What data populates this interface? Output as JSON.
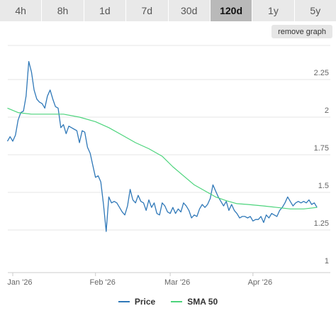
{
  "tabs": [
    {
      "label": "4h",
      "active": false
    },
    {
      "label": "8h",
      "active": false
    },
    {
      "label": "1d",
      "active": false
    },
    {
      "label": "7d",
      "active": false
    },
    {
      "label": "30d",
      "active": false
    },
    {
      "label": "120d",
      "active": true
    },
    {
      "label": "1y",
      "active": false
    },
    {
      "label": "5y",
      "active": false
    }
  ],
  "remove_graph_label": "remove graph",
  "colors": {
    "price": "#2f78b8",
    "sma": "#4cd47c",
    "grid": "#e6e6e6",
    "axis": "#cccccc",
    "tab_active": "#b9b9b9",
    "tab": "#e9e9e9"
  },
  "legend": [
    {
      "label": "Price",
      "color": "#2f78b8"
    },
    {
      "label": "SMA 50",
      "color": "#4cd47c"
    }
  ],
  "chart_data": {
    "type": "line",
    "title": "",
    "xlabel": "",
    "ylabel": "",
    "ylim": [
      1,
      2.5
    ],
    "xlim": [
      "2026-01-01",
      "2026-04-30"
    ],
    "y_ticks": [
      1,
      1.25,
      1.5,
      1.75,
      2,
      2.25
    ],
    "y_tick_labels": [
      "1",
      "1.25",
      "1.5",
      "1.75",
      "2",
      "2.25"
    ],
    "x_ticks": [
      {
        "date": "2026-01-01",
        "label": "Jan '26"
      },
      {
        "date": "2026-02-01",
        "label": "Feb '26"
      },
      {
        "date": "2026-03-01",
        "label": "Mar '26"
      },
      {
        "date": "2026-04-01",
        "label": "Apr '26"
      }
    ],
    "grid": "horizontal",
    "legend_position": "bottom-center",
    "series": [
      {
        "name": "Price",
        "color": "#2f78b8",
        "points": [
          [
            "2025-12-30",
            1.84
          ],
          [
            "2025-12-31",
            1.87
          ],
          [
            "2026-01-01",
            1.84
          ],
          [
            "2026-01-02",
            1.88
          ],
          [
            "2026-01-03",
            1.98
          ],
          [
            "2026-01-04",
            2.03
          ],
          [
            "2026-01-05",
            2.04
          ],
          [
            "2026-01-06",
            2.14
          ],
          [
            "2026-01-07",
            2.37
          ],
          [
            "2026-01-08",
            2.3
          ],
          [
            "2026-01-09",
            2.18
          ],
          [
            "2026-01-10",
            2.12
          ],
          [
            "2026-01-11",
            2.1
          ],
          [
            "2026-01-12",
            2.09
          ],
          [
            "2026-01-13",
            2.06
          ],
          [
            "2026-01-14",
            2.14
          ],
          [
            "2026-01-15",
            2.18
          ],
          [
            "2026-01-16",
            2.12
          ],
          [
            "2026-01-17",
            2.07
          ],
          [
            "2026-01-18",
            2.06
          ],
          [
            "2026-01-19",
            1.93
          ],
          [
            "2026-01-20",
            1.95
          ],
          [
            "2026-01-21",
            1.89
          ],
          [
            "2026-01-22",
            1.94
          ],
          [
            "2026-01-23",
            1.93
          ],
          [
            "2026-01-24",
            1.92
          ],
          [
            "2026-01-25",
            1.91
          ],
          [
            "2026-01-26",
            1.83
          ],
          [
            "2026-01-27",
            1.91
          ],
          [
            "2026-01-28",
            1.9
          ],
          [
            "2026-01-29",
            1.8
          ],
          [
            "2026-01-30",
            1.76
          ],
          [
            "2026-01-31",
            1.68
          ],
          [
            "2026-02-01",
            1.6
          ],
          [
            "2026-02-02",
            1.61
          ],
          [
            "2026-02-03",
            1.57
          ],
          [
            "2026-02-04",
            1.42
          ],
          [
            "2026-02-05",
            1.24
          ],
          [
            "2026-02-06",
            1.47
          ],
          [
            "2026-02-07",
            1.43
          ],
          [
            "2026-02-08",
            1.44
          ],
          [
            "2026-02-09",
            1.43
          ],
          [
            "2026-02-10",
            1.4
          ],
          [
            "2026-02-11",
            1.37
          ],
          [
            "2026-02-12",
            1.35
          ],
          [
            "2026-02-13",
            1.41
          ],
          [
            "2026-02-14",
            1.52
          ],
          [
            "2026-02-15",
            1.45
          ],
          [
            "2026-02-16",
            1.43
          ],
          [
            "2026-02-17",
            1.48
          ],
          [
            "2026-02-18",
            1.44
          ],
          [
            "2026-02-19",
            1.43
          ],
          [
            "2026-02-20",
            1.38
          ],
          [
            "2026-02-21",
            1.45
          ],
          [
            "2026-02-22",
            1.4
          ],
          [
            "2026-02-23",
            1.43
          ],
          [
            "2026-02-24",
            1.36
          ],
          [
            "2026-02-25",
            1.35
          ],
          [
            "2026-02-26",
            1.43
          ],
          [
            "2026-02-27",
            1.41
          ],
          [
            "2026-02-28",
            1.37
          ],
          [
            "2026-03-01",
            1.36
          ],
          [
            "2026-03-02",
            1.4
          ],
          [
            "2026-03-03",
            1.36
          ],
          [
            "2026-03-04",
            1.39
          ],
          [
            "2026-03-05",
            1.37
          ],
          [
            "2026-03-06",
            1.43
          ],
          [
            "2026-03-07",
            1.41
          ],
          [
            "2026-03-08",
            1.38
          ],
          [
            "2026-03-09",
            1.33
          ],
          [
            "2026-03-10",
            1.35
          ],
          [
            "2026-03-11",
            1.34
          ],
          [
            "2026-03-12",
            1.39
          ],
          [
            "2026-03-13",
            1.42
          ],
          [
            "2026-03-14",
            1.4
          ],
          [
            "2026-03-15",
            1.42
          ],
          [
            "2026-03-16",
            1.46
          ],
          [
            "2026-03-17",
            1.55
          ],
          [
            "2026-03-18",
            1.51
          ],
          [
            "2026-03-19",
            1.47
          ],
          [
            "2026-03-20",
            1.44
          ],
          [
            "2026-03-21",
            1.41
          ],
          [
            "2026-03-22",
            1.44
          ],
          [
            "2026-03-23",
            1.38
          ],
          [
            "2026-03-24",
            1.42
          ],
          [
            "2026-03-25",
            1.38
          ],
          [
            "2026-03-26",
            1.36
          ],
          [
            "2026-03-27",
            1.33
          ],
          [
            "2026-03-28",
            1.34
          ],
          [
            "2026-03-29",
            1.34
          ],
          [
            "2026-03-30",
            1.33
          ],
          [
            "2026-03-31",
            1.34
          ],
          [
            "2026-04-01",
            1.31
          ],
          [
            "2026-04-02",
            1.32
          ],
          [
            "2026-04-03",
            1.32
          ],
          [
            "2026-04-04",
            1.34
          ],
          [
            "2026-04-05",
            1.3
          ],
          [
            "2026-04-06",
            1.35
          ],
          [
            "2026-04-07",
            1.33
          ],
          [
            "2026-04-08",
            1.36
          ],
          [
            "2026-04-09",
            1.35
          ],
          [
            "2026-04-10",
            1.34
          ],
          [
            "2026-04-11",
            1.38
          ],
          [
            "2026-04-12",
            1.4
          ],
          [
            "2026-04-13",
            1.43
          ],
          [
            "2026-04-14",
            1.47
          ],
          [
            "2026-04-15",
            1.44
          ],
          [
            "2026-04-16",
            1.41
          ],
          [
            "2026-04-17",
            1.43
          ],
          [
            "2026-04-18",
            1.44
          ],
          [
            "2026-04-19",
            1.43
          ],
          [
            "2026-04-20",
            1.44
          ],
          [
            "2026-04-21",
            1.43
          ],
          [
            "2026-04-22",
            1.45
          ],
          [
            "2026-04-23",
            1.42
          ],
          [
            "2026-04-24",
            1.43
          ],
          [
            "2026-04-25",
            1.4
          ]
        ]
      },
      {
        "name": "SMA 50",
        "color": "#4cd47c",
        "points": [
          [
            "2025-12-30",
            2.06
          ],
          [
            "2026-01-03",
            2.03
          ],
          [
            "2026-01-08",
            2.02
          ],
          [
            "2026-01-14",
            2.02
          ],
          [
            "2026-01-20",
            2.02
          ],
          [
            "2026-01-26",
            2.0
          ],
          [
            "2026-02-01",
            1.97
          ],
          [
            "2026-02-06",
            1.93
          ],
          [
            "2026-02-11",
            1.88
          ],
          [
            "2026-02-16",
            1.83
          ],
          [
            "2026-02-21",
            1.79
          ],
          [
            "2026-02-26",
            1.74
          ],
          [
            "2026-03-02",
            1.67
          ],
          [
            "2026-03-06",
            1.61
          ],
          [
            "2026-03-10",
            1.55
          ],
          [
            "2026-03-14",
            1.51
          ],
          [
            "2026-03-18",
            1.47
          ],
          [
            "2026-03-22",
            1.445
          ],
          [
            "2026-03-26",
            1.425
          ],
          [
            "2026-03-30",
            1.42
          ],
          [
            "2026-04-05",
            1.41
          ],
          [
            "2026-04-10",
            1.4
          ],
          [
            "2026-04-15",
            1.39
          ],
          [
            "2026-04-20",
            1.39
          ],
          [
            "2026-04-25",
            1.4
          ]
        ]
      }
    ]
  }
}
